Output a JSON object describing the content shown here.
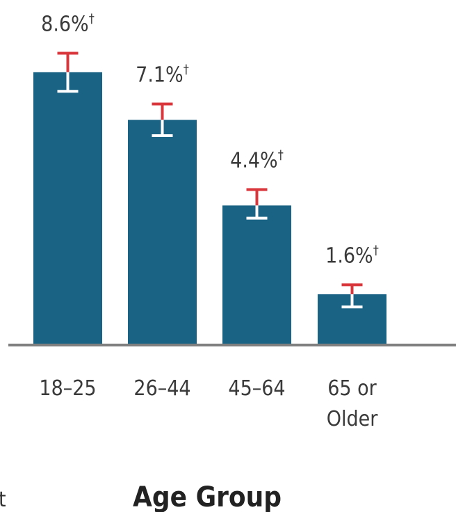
{
  "chart_data": {
    "type": "bar",
    "categories": [
      [
        "18–25"
      ],
      [
        "26–44"
      ],
      [
        "45–64"
      ],
      [
        "65 or",
        "Older"
      ]
    ],
    "values": [
      8.6,
      7.1,
      4.4,
      1.6
    ],
    "value_labels": [
      "8.6%",
      "7.1%",
      "4.4%",
      "1.6%"
    ],
    "label_marker": "†",
    "error_bars": [
      {
        "upper": 9.2,
        "lower": 8.0
      },
      {
        "upper": 7.6,
        "lower": 6.6
      },
      {
        "upper": 4.9,
        "lower": 4.0
      },
      {
        "upper": 1.9,
        "lower": 1.2
      }
    ],
    "xlabel": "Age Group",
    "ylim": [
      0,
      10
    ],
    "bar_color": "#1b6385",
    "error_upper_color": "#d9363b",
    "error_lower_color": "#ffffff",
    "baseline_color": "#7f7f7f",
    "grid": false
  },
  "stray_text": "t"
}
